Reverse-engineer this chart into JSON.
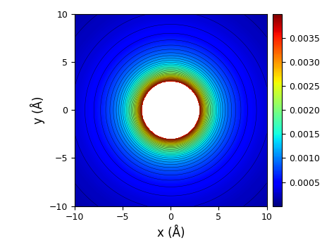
{
  "title": "",
  "xlabel": "x (Å)",
  "ylabel": "y (Å)",
  "xlim": [
    -10,
    10
  ],
  "ylim": [
    -10,
    10
  ],
  "xticks": [
    -10,
    -5,
    0,
    5,
    10
  ],
  "yticks": [
    -10,
    -5,
    0,
    5,
    10
  ],
  "vmin": 0.0,
  "vmax": 0.004,
  "cbar_ticks": [
    0.0005,
    0.001,
    0.0015,
    0.002,
    0.0025,
    0.003,
    0.0035
  ],
  "cbar_ticklabels": [
    "0.0005",
    "0.0010",
    "0.0015",
    "0.0020",
    "0.0025",
    "0.0030",
    "0.0035"
  ],
  "colormap": "jet",
  "resolution": 600,
  "b": 0.198,
  "r0": 3.0,
  "figsize": [
    4.74,
    3.55
  ],
  "dpi": 100,
  "contour_levels": 40,
  "xlabel_fontsize": 12,
  "ylabel_fontsize": 12,
  "contour_vmin": 0.0002,
  "contour_vmax": 0.004
}
